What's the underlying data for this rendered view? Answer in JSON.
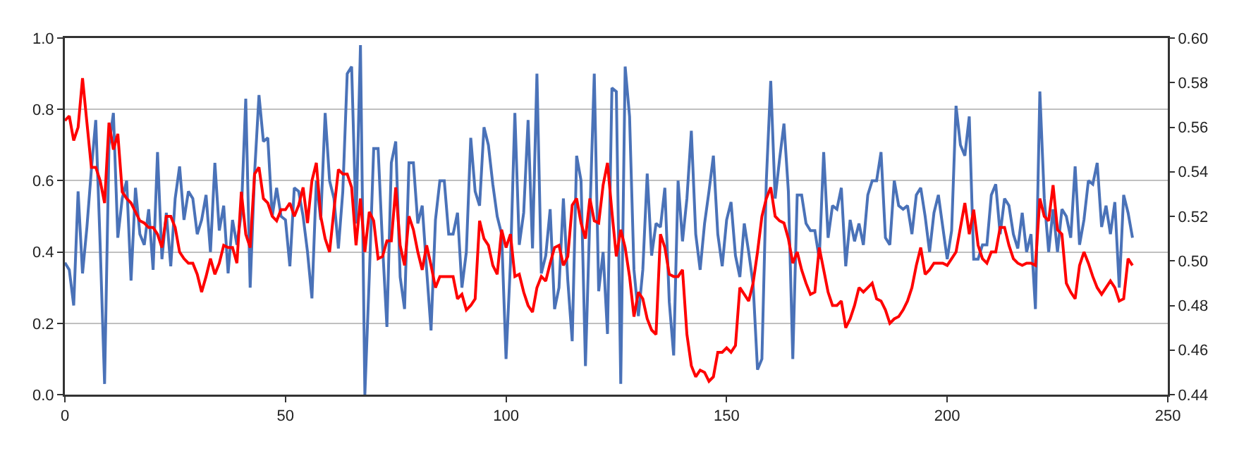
{
  "chart_data": {
    "type": "line",
    "x": [
      0,
      1,
      2,
      3,
      4,
      5,
      6,
      7,
      8,
      9,
      10,
      11,
      12,
      13,
      14,
      15,
      16,
      17,
      18,
      19,
      20,
      21,
      22,
      23,
      24,
      25,
      26,
      27,
      28,
      29,
      30,
      31,
      32,
      33,
      34,
      35,
      36,
      37,
      38,
      39,
      40,
      41,
      42,
      43,
      44,
      45,
      46,
      47,
      48,
      49,
      50,
      51,
      52,
      53,
      54,
      55,
      56,
      57,
      58,
      59,
      60,
      61,
      62,
      63,
      64,
      65,
      66,
      67,
      68,
      69,
      70,
      71,
      72,
      73,
      74,
      75,
      76,
      77,
      78,
      79,
      80,
      81,
      82,
      83,
      84,
      85,
      86,
      87,
      88,
      89,
      90,
      91,
      92,
      93,
      94,
      95,
      96,
      97,
      98,
      99,
      100,
      101,
      102,
      103,
      104,
      105,
      106,
      107,
      108,
      109,
      110,
      111,
      112,
      113,
      114,
      115,
      116,
      117,
      118,
      119,
      120,
      121,
      122,
      123,
      124,
      125,
      126,
      127,
      128,
      129,
      130,
      131,
      132,
      133,
      134,
      135,
      136,
      137,
      138,
      139,
      140,
      141,
      142,
      143,
      144,
      145,
      146,
      147,
      148,
      149,
      150,
      151,
      152,
      153,
      154,
      155,
      156,
      157,
      158,
      159,
      160,
      161,
      162,
      163,
      164,
      165,
      166,
      167,
      168,
      169,
      170,
      171,
      172,
      173,
      174,
      175,
      176,
      177,
      178,
      179,
      180,
      181,
      182,
      183,
      184,
      185,
      186,
      187,
      188,
      189,
      190,
      191,
      192,
      193,
      194,
      195,
      196,
      197,
      198,
      199,
      200,
      201,
      202,
      203,
      204,
      205,
      206,
      207,
      208,
      209,
      210,
      211,
      212,
      213,
      214,
      215,
      216,
      217,
      218,
      219,
      220,
      221,
      222,
      223,
      224,
      225,
      226,
      227,
      228,
      229,
      230,
      231,
      232,
      233,
      234,
      235,
      236,
      237,
      238,
      239,
      240,
      241,
      242
    ],
    "series": [
      {
        "color": "#4a72b8",
        "values": [
          0.37,
          0.35,
          0.25,
          0.57,
          0.34,
          0.47,
          0.63,
          0.77,
          0.42,
          0.03,
          0.7,
          0.79,
          0.44,
          0.55,
          0.6,
          0.32,
          0.58,
          0.45,
          0.42,
          0.52,
          0.35,
          0.68,
          0.38,
          0.51,
          0.36,
          0.55,
          0.64,
          0.49,
          0.57,
          0.55,
          0.45,
          0.49,
          0.56,
          0.4,
          0.65,
          0.46,
          0.53,
          0.34,
          0.49,
          0.42,
          0.51,
          0.83,
          0.3,
          0.62,
          0.84,
          0.71,
          0.72,
          0.5,
          0.58,
          0.5,
          0.49,
          0.36,
          0.58,
          0.57,
          0.5,
          0.4,
          0.27,
          0.6,
          0.49,
          0.79,
          0.6,
          0.55,
          0.41,
          0.57,
          0.9,
          0.92,
          0.48,
          0.98,
          0.0,
          0.33,
          0.69,
          0.69,
          0.42,
          0.19,
          0.65,
          0.71,
          0.33,
          0.24,
          0.65,
          0.65,
          0.48,
          0.53,
          0.35,
          0.18,
          0.49,
          0.6,
          0.6,
          0.45,
          0.45,
          0.51,
          0.3,
          0.4,
          0.72,
          0.57,
          0.53,
          0.75,
          0.7,
          0.59,
          0.5,
          0.45,
          0.1,
          0.37,
          0.79,
          0.42,
          0.51,
          0.77,
          0.41,
          0.9,
          0.34,
          0.39,
          0.52,
          0.24,
          0.3,
          0.55,
          0.32,
          0.15,
          0.67,
          0.6,
          0.08,
          0.5,
          0.9,
          0.29,
          0.4,
          0.17,
          0.86,
          0.85,
          0.03,
          0.92,
          0.78,
          0.35,
          0.22,
          0.35,
          0.62,
          0.39,
          0.48,
          0.47,
          0.58,
          0.26,
          0.11,
          0.6,
          0.43,
          0.55,
          0.74,
          0.45,
          0.35,
          0.48,
          0.57,
          0.67,
          0.45,
          0.36,
          0.49,
          0.54,
          0.39,
          0.33,
          0.48,
          0.4,
          0.31,
          0.07,
          0.1,
          0.6,
          0.88,
          0.55,
          0.66,
          0.76,
          0.57,
          0.1,
          0.56,
          0.56,
          0.48,
          0.46,
          0.46,
          0.38,
          0.68,
          0.44,
          0.53,
          0.52,
          0.58,
          0.36,
          0.49,
          0.43,
          0.48,
          0.42,
          0.56,
          0.6,
          0.6,
          0.68,
          0.44,
          0.42,
          0.6,
          0.53,
          0.52,
          0.53,
          0.45,
          0.56,
          0.58,
          0.5,
          0.4,
          0.51,
          0.56,
          0.47,
          0.38,
          0.46,
          0.81,
          0.7,
          0.67,
          0.78,
          0.38,
          0.38,
          0.42,
          0.42,
          0.56,
          0.59,
          0.45,
          0.55,
          0.53,
          0.45,
          0.41,
          0.51,
          0.4,
          0.45,
          0.24,
          0.85,
          0.55,
          0.4,
          0.52,
          0.4,
          0.52,
          0.5,
          0.44,
          0.64,
          0.42,
          0.49,
          0.6,
          0.59,
          0.65,
          0.47,
          0.53,
          0.45,
          0.54,
          0.3,
          0.56,
          0.51,
          0.44
        ]
      },
      {
        "color": "#ff0000",
        "axis": "y2",
        "values": [
          0.563,
          0.565,
          0.554,
          0.56,
          0.582,
          0.562,
          0.542,
          0.542,
          0.536,
          0.526,
          0.562,
          0.55,
          0.557,
          0.531,
          0.528,
          0.526,
          0.522,
          0.518,
          0.517,
          0.515,
          0.515,
          0.512,
          0.506,
          0.52,
          0.52,
          0.515,
          0.504,
          0.501,
          0.499,
          0.499,
          0.494,
          0.486,
          0.493,
          0.501,
          0.494,
          0.499,
          0.507,
          0.506,
          0.506,
          0.499,
          0.531,
          0.512,
          0.506,
          0.539,
          0.542,
          0.528,
          0.526,
          0.52,
          0.518,
          0.523,
          0.523,
          0.526,
          0.52,
          0.525,
          0.533,
          0.517,
          0.536,
          0.544,
          0.52,
          0.51,
          0.504,
          0.523,
          0.541,
          0.539,
          0.539,
          0.533,
          0.507,
          0.528,
          0.504,
          0.522,
          0.518,
          0.501,
          0.502,
          0.509,
          0.509,
          0.533,
          0.507,
          0.498,
          0.52,
          0.514,
          0.504,
          0.496,
          0.507,
          0.498,
          0.488,
          0.493,
          0.493,
          0.493,
          0.493,
          0.483,
          0.485,
          0.478,
          0.48,
          0.483,
          0.518,
          0.51,
          0.507,
          0.498,
          0.494,
          0.514,
          0.506,
          0.512,
          0.493,
          0.494,
          0.486,
          0.48,
          0.477,
          0.488,
          0.493,
          0.491,
          0.499,
          0.506,
          0.507,
          0.498,
          0.502,
          0.525,
          0.528,
          0.517,
          0.51,
          0.528,
          0.518,
          0.517,
          0.534,
          0.544,
          0.522,
          0.502,
          0.514,
          0.506,
          0.493,
          0.475,
          0.486,
          0.483,
          0.474,
          0.469,
          0.467,
          0.512,
          0.506,
          0.494,
          0.493,
          0.493,
          0.496,
          0.467,
          0.453,
          0.448,
          0.451,
          0.45,
          0.446,
          0.448,
          0.459,
          0.459,
          0.461,
          0.459,
          0.462,
          0.488,
          0.485,
          0.482,
          0.49,
          0.504,
          0.52,
          0.528,
          0.533,
          0.52,
          0.518,
          0.517,
          0.51,
          0.499,
          0.504,
          0.496,
          0.49,
          0.485,
          0.486,
          0.506,
          0.496,
          0.486,
          0.48,
          0.48,
          0.482,
          0.47,
          0.474,
          0.48,
          0.488,
          0.486,
          0.488,
          0.49,
          0.483,
          0.482,
          0.478,
          0.472,
          0.474,
          0.475,
          0.478,
          0.482,
          0.488,
          0.498,
          0.506,
          0.494,
          0.496,
          0.499,
          0.499,
          0.499,
          0.498,
          0.501,
          0.504,
          0.515,
          0.526,
          0.512,
          0.523,
          0.507,
          0.501,
          0.499,
          0.504,
          0.504,
          0.515,
          0.515,
          0.507,
          0.501,
          0.499,
          0.498,
          0.499,
          0.499,
          0.498,
          0.528,
          0.52,
          0.518,
          0.534,
          0.514,
          0.512,
          0.49,
          0.486,
          0.483,
          0.498,
          0.504,
          0.499,
          0.493,
          0.488,
          0.485,
          0.488,
          0.491,
          0.488,
          0.482,
          0.483,
          0.501,
          0.498
        ]
      }
    ],
    "xlim": [
      0,
      250
    ],
    "xticks": [
      0,
      50,
      100,
      150,
      200,
      250
    ],
    "ylim": [
      0,
      1
    ],
    "yticks": [
      {
        "value": 0,
        "label": "0.0"
      },
      {
        "value": 0.2,
        "label": "0.2"
      },
      {
        "value": 0.4,
        "label": "0.4"
      },
      {
        "value": 0.6,
        "label": "0.6"
      },
      {
        "value": 0.8,
        "label": "0.8"
      },
      {
        "value": 1,
        "label": "1.0"
      }
    ],
    "y2lim": [
      0.44,
      0.6
    ],
    "y2ticks": [
      0.44,
      0.46,
      0.48,
      {
        "value": 0.5,
        "label": "0.50"
      },
      0.52,
      0.54,
      0.56,
      0.58,
      {
        "value": 0.6,
        "label": "0.60"
      }
    ],
    "grid": "y",
    "marker": "none",
    "line_style": "solid"
  }
}
